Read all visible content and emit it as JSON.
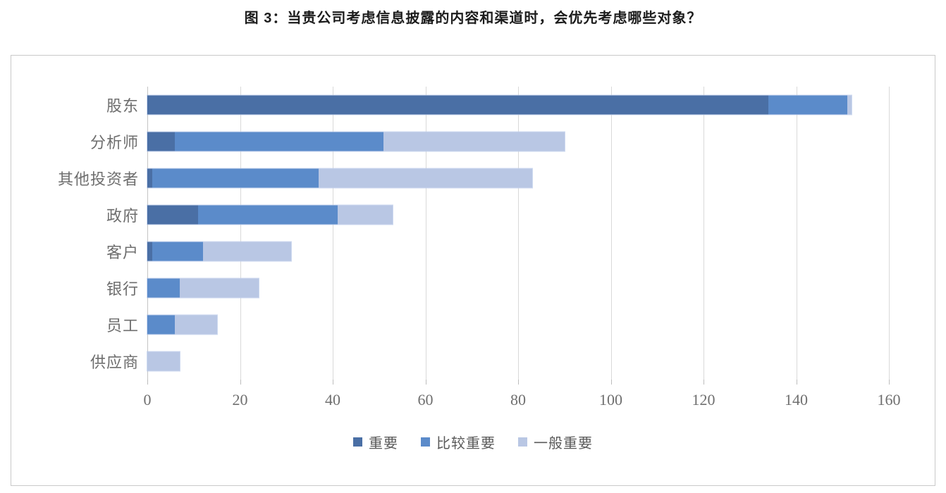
{
  "title": "图 3：当贵公司考虑信息披露的内容和渠道时，会优先考虑哪些对象？",
  "colors": {
    "important": "#4a6fa5",
    "fairly_important": "#5b8bca",
    "generally_important": "#b9c7e4",
    "grid": "#d9d9d9",
    "axis_text": "#6f6f6f",
    "frame_border": "#c9c9c9"
  },
  "chart_data": {
    "type": "bar",
    "orientation": "horizontal",
    "stacked": true,
    "title": "图 3：当贵公司考虑信息披露的内容和渠道时，会优先考虑哪些对象？",
    "categories": [
      "股东",
      "分析师",
      "其他投资者",
      "政府",
      "客户",
      "银行",
      "员工",
      "供应商"
    ],
    "series": [
      {
        "name": "重要",
        "color": "#4a6fa5",
        "values": [
          134,
          6,
          1,
          11,
          1,
          0,
          0,
          0
        ]
      },
      {
        "name": "比较重要",
        "color": "#5b8bca",
        "values": [
          17,
          45,
          36,
          30,
          11,
          7,
          6,
          0
        ]
      },
      {
        "name": "一般重要",
        "color": "#b9c7e4",
        "values": [
          1,
          39,
          46,
          12,
          19,
          17,
          9,
          7
        ]
      }
    ],
    "totals": [
      152,
      90,
      83,
      53,
      31,
      24,
      15,
      7
    ],
    "xlabel": "",
    "ylabel": "",
    "xlim": [
      0,
      160
    ],
    "x_ticks": [
      0,
      20,
      40,
      60,
      80,
      100,
      120,
      140,
      160
    ],
    "grid": true,
    "legend_position": "bottom"
  }
}
